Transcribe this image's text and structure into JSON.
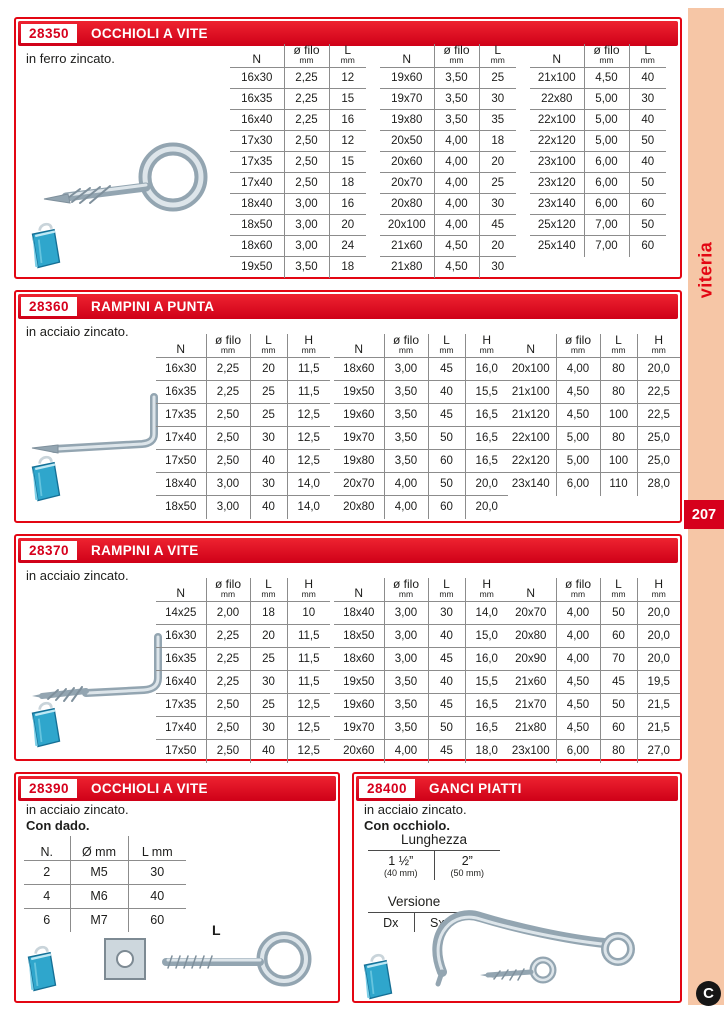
{
  "page": {
    "number": "207",
    "sidebar_label": "viteria",
    "logo_glyph": "C",
    "accent_red": "#d6001c",
    "sidebar_pink": "#f6c6a6"
  },
  "sections": {
    "s28350": {
      "code": "28350",
      "title": "OCCHIOLI A VITE",
      "description": "in ferro zincato.",
      "tables": [
        {
          "columns": [
            {
              "label": "N"
            },
            {
              "label": "ø filo",
              "sub": "mm"
            },
            {
              "label": "L",
              "sub": "mm"
            }
          ],
          "rows": [
            [
              "16x30",
              "2,25",
              "12"
            ],
            [
              "16x35",
              "2,25",
              "15"
            ],
            [
              "16x40",
              "2,25",
              "16"
            ],
            [
              "17x30",
              "2,50",
              "12"
            ],
            [
              "17x35",
              "2,50",
              "15"
            ],
            [
              "17x40",
              "2,50",
              "18"
            ],
            [
              "18x40",
              "3,00",
              "16"
            ],
            [
              "18x50",
              "3,00",
              "20"
            ],
            [
              "18x60",
              "3,00",
              "24"
            ],
            [
              "19x50",
              "3,50",
              "18"
            ]
          ]
        },
        {
          "columns": [
            {
              "label": "N"
            },
            {
              "label": "ø filo",
              "sub": "mm"
            },
            {
              "label": "L",
              "sub": "mm"
            }
          ],
          "rows": [
            [
              "19x60",
              "3,50",
              "25"
            ],
            [
              "19x70",
              "3,50",
              "30"
            ],
            [
              "19x80",
              "3,50",
              "35"
            ],
            [
              "20x50",
              "4,00",
              "18"
            ],
            [
              "20x60",
              "4,00",
              "20"
            ],
            [
              "20x70",
              "4,00",
              "25"
            ],
            [
              "20x80",
              "4,00",
              "30"
            ],
            [
              "20x100",
              "4,00",
              "45"
            ],
            [
              "21x60",
              "4,50",
              "20"
            ],
            [
              "21x80",
              "4,50",
              "30"
            ]
          ]
        },
        {
          "columns": [
            {
              "label": "N"
            },
            {
              "label": "ø filo",
              "sub": "mm"
            },
            {
              "label": "L",
              "sub": "mm"
            }
          ],
          "rows": [
            [
              "21x100",
              "4,50",
              "40"
            ],
            [
              "22x80",
              "5,00",
              "30"
            ],
            [
              "22x100",
              "5,00",
              "40"
            ],
            [
              "22x120",
              "5,00",
              "50"
            ],
            [
              "23x100",
              "6,00",
              "40"
            ],
            [
              "23x120",
              "6,00",
              "50"
            ],
            [
              "23x140",
              "6,00",
              "60"
            ],
            [
              "25x120",
              "7,00",
              "50"
            ],
            [
              "25x140",
              "7,00",
              "60"
            ]
          ]
        }
      ]
    },
    "s28360": {
      "code": "28360",
      "title": "RAMPINI A PUNTA",
      "description": "in acciaio zincato.",
      "tables": [
        {
          "columns": [
            {
              "label": "N"
            },
            {
              "label": "ø filo",
              "sub": "mm"
            },
            {
              "label": "L",
              "sub": "mm"
            },
            {
              "label": "H",
              "sub": "mm"
            }
          ],
          "rows": [
            [
              "16x30",
              "2,25",
              "20",
              "11,5"
            ],
            [
              "16x35",
              "2,25",
              "25",
              "11,5"
            ],
            [
              "17x35",
              "2,50",
              "25",
              "12,5"
            ],
            [
              "17x40",
              "2,50",
              "30",
              "12,5"
            ],
            [
              "17x50",
              "2,50",
              "40",
              "12,5"
            ],
            [
              "18x40",
              "3,00",
              "30",
              "14,0"
            ],
            [
              "18x50",
              "3,00",
              "40",
              "14,0"
            ]
          ]
        },
        {
          "columns": [
            {
              "label": "N"
            },
            {
              "label": "ø filo",
              "sub": "mm"
            },
            {
              "label": "L",
              "sub": "mm"
            },
            {
              "label": "H",
              "sub": "mm"
            }
          ],
          "rows": [
            [
              "18x60",
              "3,00",
              "45",
              "16,0"
            ],
            [
              "19x50",
              "3,50",
              "40",
              "15,5"
            ],
            [
              "19x60",
              "3,50",
              "45",
              "16,5"
            ],
            [
              "19x70",
              "3,50",
              "50",
              "16,5"
            ],
            [
              "19x80",
              "3,50",
              "60",
              "16,5"
            ],
            [
              "20x70",
              "4,00",
              "50",
              "20,0"
            ],
            [
              "20x80",
              "4,00",
              "60",
              "20,0"
            ]
          ]
        },
        {
          "columns": [
            {
              "label": "N"
            },
            {
              "label": "ø filo",
              "sub": "mm"
            },
            {
              "label": "L",
              "sub": "mm"
            },
            {
              "label": "H",
              "sub": "mm"
            }
          ],
          "rows": [
            [
              "20x100",
              "4,00",
              "80",
              "20,0"
            ],
            [
              "21x100",
              "4,50",
              "80",
              "22,5"
            ],
            [
              "21x120",
              "4,50",
              "100",
              "22,5"
            ],
            [
              "22x100",
              "5,00",
              "80",
              "25,0"
            ],
            [
              "22x120",
              "5,00",
              "100",
              "25,0"
            ],
            [
              "23x140",
              "6,00",
              "110",
              "28,0"
            ]
          ]
        }
      ]
    },
    "s28370": {
      "code": "28370",
      "title": "RAMPINI A VITE",
      "description": "in acciaio zincato.",
      "tables": [
        {
          "columns": [
            {
              "label": "N"
            },
            {
              "label": "ø filo",
              "sub": "mm"
            },
            {
              "label": "L",
              "sub": "mm"
            },
            {
              "label": "H",
              "sub": "mm"
            }
          ],
          "rows": [
            [
              "14x25",
              "2,00",
              "18",
              "10"
            ],
            [
              "16x30",
              "2,25",
              "20",
              "11,5"
            ],
            [
              "16x35",
              "2,25",
              "25",
              "11,5"
            ],
            [
              "16x40",
              "2,25",
              "30",
              "11,5"
            ],
            [
              "17x35",
              "2,50",
              "25",
              "12,5"
            ],
            [
              "17x40",
              "2,50",
              "30",
              "12,5"
            ],
            [
              "17x50",
              "2,50",
              "40",
              "12,5"
            ]
          ]
        },
        {
          "columns": [
            {
              "label": "N"
            },
            {
              "label": "ø filo",
              "sub": "mm"
            },
            {
              "label": "L",
              "sub": "mm"
            },
            {
              "label": "H",
              "sub": "mm"
            }
          ],
          "rows": [
            [
              "18x40",
              "3,00",
              "30",
              "14,0"
            ],
            [
              "18x50",
              "3,00",
              "40",
              "15,0"
            ],
            [
              "18x60",
              "3,00",
              "45",
              "16,0"
            ],
            [
              "19x50",
              "3,50",
              "40",
              "15,5"
            ],
            [
              "19x60",
              "3,50",
              "45",
              "16,5"
            ],
            [
              "19x70",
              "3,50",
              "50",
              "16,5"
            ],
            [
              "20x60",
              "4,00",
              "45",
              "18,0"
            ]
          ]
        },
        {
          "columns": [
            {
              "label": "N"
            },
            {
              "label": "ø filo",
              "sub": "mm"
            },
            {
              "label": "L",
              "sub": "mm"
            },
            {
              "label": "H",
              "sub": "mm"
            }
          ],
          "rows": [
            [
              "20x70",
              "4,00",
              "50",
              "20,0"
            ],
            [
              "20x80",
              "4,00",
              "60",
              "20,0"
            ],
            [
              "20x90",
              "4,00",
              "70",
              "20,0"
            ],
            [
              "21x60",
              "4,50",
              "45",
              "19,5"
            ],
            [
              "21x70",
              "4,50",
              "50",
              "21,5"
            ],
            [
              "21x80",
              "4,50",
              "60",
              "21,5"
            ],
            [
              "23x100",
              "6,00",
              "80",
              "27,0"
            ]
          ]
        }
      ]
    },
    "s28390": {
      "code": "28390",
      "title": "OCCHIOLI A VITE",
      "description": "in acciaio zincato.",
      "bold_note": "Con dado.",
      "image_label": "L",
      "table": {
        "columns": [
          {
            "label": "N."
          },
          {
            "label": "Ø mm"
          },
          {
            "label": "L mm"
          }
        ],
        "rows": [
          [
            "2",
            "M5",
            "30"
          ],
          [
            "4",
            "M6",
            "40"
          ],
          [
            "6",
            "M7",
            "60"
          ]
        ]
      }
    },
    "s28400": {
      "code": "28400",
      "title": "GANCI PIATTI",
      "description": "in acciaio zincato.",
      "bold_note": "Con occhiolo.",
      "lunghezza": {
        "title": "Lunghezza",
        "options": [
          {
            "main": "1 ½”",
            "sub": "(40 mm)"
          },
          {
            "main": "2”",
            "sub": "(50 mm)"
          }
        ]
      },
      "versione": {
        "title": "Versione",
        "options": [
          "Dx",
          "Sx"
        ]
      }
    }
  }
}
